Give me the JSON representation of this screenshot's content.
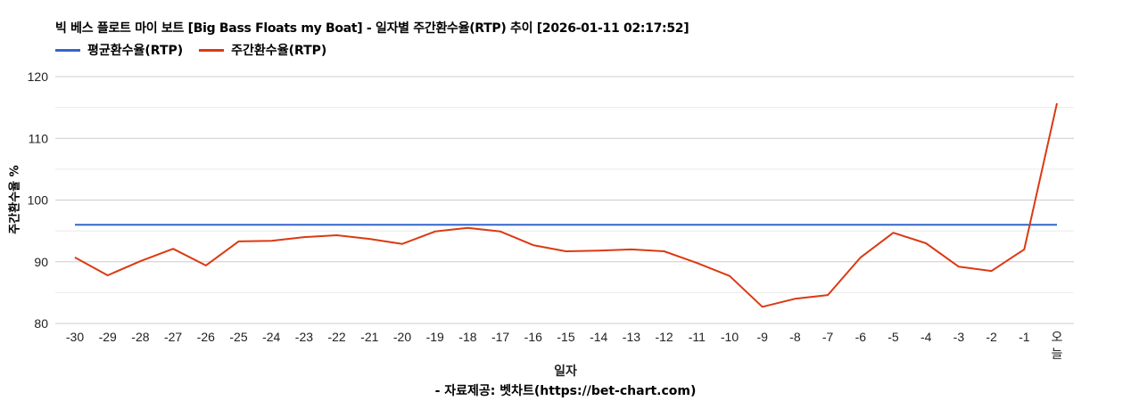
{
  "title": "빅 베스 플로트 마이 보트 [Big Bass Floats my Boat] - 일자별 주간환수율(RTP) 추이 [2026-01-11 02:17:52]",
  "legend": [
    {
      "label": "평균환수율(RTP)",
      "color": "#3366cc"
    },
    {
      "label": "주간환수율(RTP)",
      "color": "#dc3912"
    }
  ],
  "y_axis_title": "주간환수율 %",
  "x_axis_title": "일자",
  "credit": "- 자료제공: 벳차트(https://bet-chart.com)",
  "chart_data": {
    "type": "line",
    "title": "빅 베스 플로트 마이 보트 [Big Bass Floats my Boat] - 일자별 주간환수율(RTP) 추이 [2026-01-11 02:17:52]",
    "xlabel": "일자",
    "ylabel": "주간환수율 %",
    "ylim": [
      80,
      120
    ],
    "yticks": [
      80,
      90,
      100,
      110,
      120
    ],
    "grid": true,
    "legend_position": "top",
    "categories": [
      "-30",
      "-29",
      "-28",
      "-27",
      "-26",
      "-25",
      "-24",
      "-23",
      "-22",
      "-21",
      "-20",
      "-19",
      "-18",
      "-17",
      "-16",
      "-15",
      "-14",
      "-13",
      "-12",
      "-11",
      "-10",
      "-9",
      "-8",
      "-7",
      "-6",
      "-5",
      "-4",
      "-3",
      "-2",
      "-1",
      "오늘"
    ],
    "series": [
      {
        "name": "평균환수율(RTP)",
        "color": "#3366cc",
        "values": [
          96.0,
          96.0,
          96.0,
          96.0,
          96.0,
          96.0,
          96.0,
          96.0,
          96.0,
          96.0,
          96.0,
          96.0,
          96.0,
          96.0,
          96.0,
          96.0,
          96.0,
          96.0,
          96.0,
          96.0,
          96.0,
          96.0,
          96.0,
          96.0,
          96.0,
          96.0,
          96.0,
          96.0,
          96.0,
          96.0,
          96.0
        ]
      },
      {
        "name": "주간환수율(RTP)",
        "color": "#dc3912",
        "values": [
          90.7,
          87.8,
          90.1,
          92.1,
          89.4,
          93.3,
          93.4,
          94.0,
          94.3,
          93.7,
          92.9,
          94.9,
          95.5,
          94.9,
          92.7,
          91.7,
          91.8,
          92.0,
          91.7,
          89.8,
          87.7,
          82.7,
          84.0,
          84.6,
          90.7,
          94.7,
          93.0,
          89.2,
          88.5,
          92.0,
          115.7
        ]
      }
    ]
  }
}
